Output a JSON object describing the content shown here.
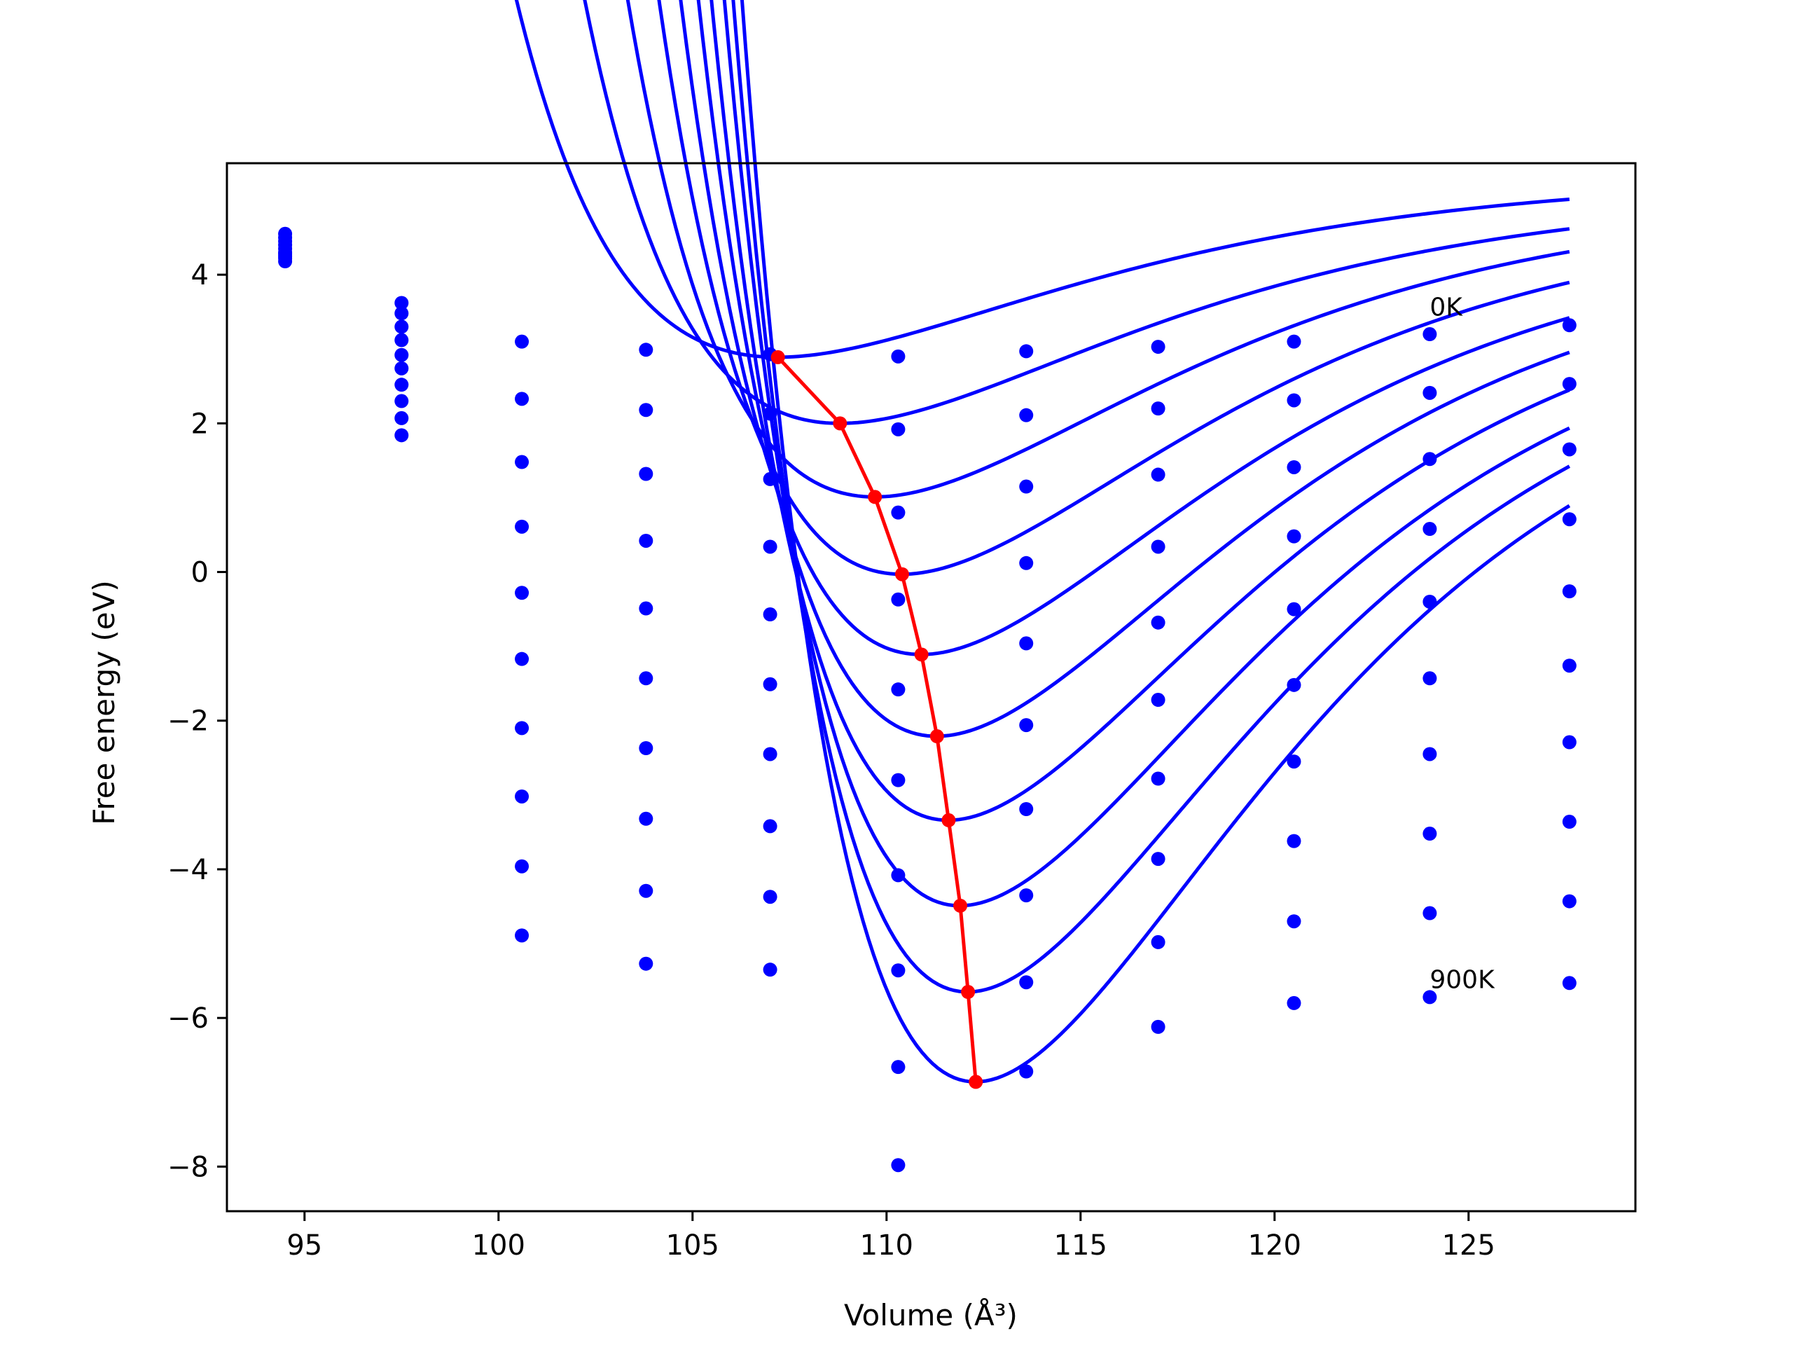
{
  "chart_data": {
    "type": "line",
    "xlabel": "Volume (Å³)",
    "ylabel": "Free energy (eV)",
    "xlim": [
      93,
      129.3
    ],
    "ylim": [
      -8.6,
      5.5
    ],
    "xticks": [
      95,
      100,
      105,
      110,
      115,
      120,
      125
    ],
    "yticks": [
      -8,
      -6,
      -4,
      -2,
      0,
      2,
      4
    ],
    "grid": false,
    "colors": {
      "fit": "#0000ff",
      "points": "#0000ff",
      "minima": "#ff0000"
    },
    "annotations": [
      {
        "text": "0K",
        "x": 124.0,
        "y": 3.45
      },
      {
        "text": "900K",
        "x": 124.0,
        "y": -5.6
      }
    ],
    "volumes": [
      94.5,
      97.5,
      100.6,
      103.8,
      107.0,
      110.3,
      113.6,
      117.0,
      120.5,
      124.0,
      127.6
    ],
    "series": [
      {
        "values": [
          4.55,
          3.62,
          3.1,
          2.99,
          2.93,
          2.9,
          2.97,
          3.03,
          3.1,
          3.2,
          3.32
        ],
        "fit": {
          "V0": 107.2,
          "E0": 2.89,
          "A": 2.45,
          "k": 0.13,
          "b": 0.0004
        }
      },
      {
        "values": [
          4.5,
          3.48,
          2.33,
          2.18,
          2.13,
          1.92,
          2.11,
          2.2,
          2.31,
          2.41,
          2.53
        ],
        "fit": {
          "V0": 108.8,
          "E0": 2.0,
          "A": 3.12,
          "k": 0.13,
          "b": 0.0008
        }
      },
      {
        "values": [
          4.45,
          3.3,
          1.48,
          1.32,
          1.25,
          0.8,
          1.15,
          1.31,
          1.41,
          1.52,
          1.65
        ],
        "fit": {
          "V0": 109.7,
          "E0": 1.01,
          "A": 4.03,
          "k": 0.13,
          "b": 0.001
        }
      },
      {
        "values": [
          4.4,
          3.12,
          0.61,
          0.42,
          0.34,
          -0.37,
          0.12,
          0.34,
          0.48,
          0.58,
          0.71
        ],
        "fit": {
          "V0": 110.4,
          "E0": -0.03,
          "A": 4.89,
          "k": 0.13,
          "b": 0.0015
        }
      },
      {
        "values": [
          4.35,
          2.92,
          -0.28,
          -0.49,
          -0.57,
          -1.58,
          -0.96,
          -0.68,
          -0.5,
          -0.4,
          -0.26
        ],
        "fit": {
          "V0": 110.9,
          "E0": -1.11,
          "A": 5.73,
          "k": 0.13,
          "b": 0.002
        }
      },
      {
        "values": [
          4.3,
          2.74,
          -1.17,
          -1.43,
          -1.51,
          -2.8,
          -2.06,
          -1.72,
          -1.52,
          -1.43,
          -1.26
        ],
        "fit": {
          "V0": 111.3,
          "E0": -2.21,
          "A": 6.62,
          "k": 0.13,
          "b": 0.0025
        }
      },
      {
        "values": [
          4.28,
          2.52,
          -2.1,
          -2.37,
          -2.45,
          -4.08,
          -3.19,
          -2.78,
          -2.55,
          -2.45,
          -2.29
        ],
        "fit": {
          "V0": 111.6,
          "E0": -3.34,
          "A": 7.5,
          "k": 0.13,
          "b": 0.0029
        }
      },
      {
        "values": [
          4.25,
          2.3,
          -3.02,
          -3.32,
          -3.42,
          -5.36,
          -4.35,
          -3.86,
          -3.62,
          -3.52,
          -3.36
        ],
        "fit": {
          "V0": 111.9,
          "E0": -4.49,
          "A": 8.42,
          "k": 0.13,
          "b": 0.0033
        }
      },
      {
        "values": [
          4.22,
          2.07,
          -3.96,
          -4.29,
          -4.37,
          -6.66,
          -5.52,
          -4.98,
          -4.7,
          -4.59,
          -4.43
        ],
        "fit": {
          "V0": 112.1,
          "E0": -5.65,
          "A": 9.34,
          "k": 0.13,
          "b": 0.0037
        }
      },
      {
        "values": [
          4.18,
          1.84,
          -4.89,
          -5.27,
          -5.35,
          -7.98,
          -6.72,
          -6.12,
          -5.8,
          -5.72,
          -5.53
        ],
        "fit": {
          "V0": 112.3,
          "E0": -6.86,
          "A": 10.32,
          "k": 0.13,
          "b": 0.0041
        }
      }
    ],
    "minima": {
      "x": [
        107.2,
        108.8,
        109.7,
        110.4,
        110.9,
        111.3,
        111.6,
        111.9,
        112.1,
        112.3
      ],
      "y": [
        2.89,
        2.0,
        1.01,
        -0.03,
        -1.11,
        -2.21,
        -3.34,
        -4.49,
        -5.65,
        -6.86
      ]
    }
  }
}
